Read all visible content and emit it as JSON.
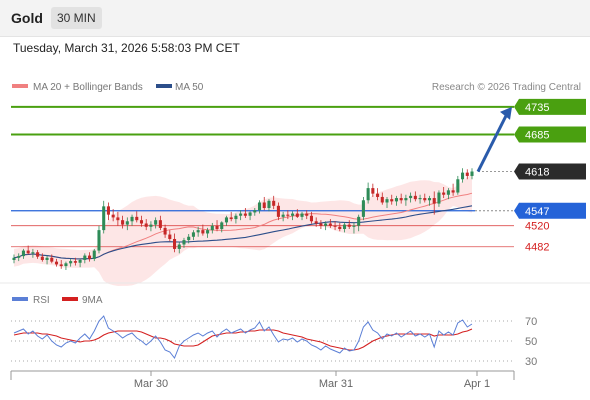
{
  "header": {
    "symbol": "Gold",
    "timeframe": "30 MIN"
  },
  "datetime": "Tuesday, March 31, 2026 5:58:03 PM CET",
  "chart_data": [
    {
      "type": "candlestick",
      "legend": [
        {
          "name": "MA 20 + Bollinger Bands",
          "color": "#f08080"
        },
        {
          "name": "MA 50",
          "color": "#2c4e8a"
        }
      ],
      "copyright": "Research © 2026 Trading Central",
      "ylim": [
        4420,
        4760
      ],
      "levels": [
        {
          "label": "4735",
          "value": 4735,
          "role": "resistance",
          "color": "#4aa010"
        },
        {
          "label": "4685",
          "value": 4685,
          "role": "resistance",
          "color": "#4aa010"
        },
        {
          "label": "4618",
          "value": 4618,
          "role": "last",
          "color": "#2b2b2b"
        },
        {
          "label": "4547",
          "value": 4547,
          "role": "pivot",
          "color": "#2563d8"
        },
        {
          "label": "4520",
          "value": 4520,
          "role": "support",
          "color": "#d42020"
        },
        {
          "label": "4482",
          "value": 4482,
          "role": "support",
          "color": "#d42020"
        }
      ],
      "x_ticks": [
        "Mar 30",
        "Mar 31",
        "Apr 1"
      ],
      "arrow": {
        "from": 4618,
        "to": 4735
      },
      "candles": [
        [
          4458,
          4468,
          4452,
          4462
        ],
        [
          4462,
          4470,
          4456,
          4465
        ],
        [
          4465,
          4478,
          4460,
          4475
        ],
        [
          4475,
          4484,
          4468,
          4470
        ],
        [
          4470,
          4478,
          4462,
          4472
        ],
        [
          4472,
          4476,
          4460,
          4464
        ],
        [
          4464,
          4470,
          4455,
          4458
        ],
        [
          4458,
          4466,
          4450,
          4462
        ],
        [
          4462,
          4468,
          4452,
          4455
        ],
        [
          4455,
          4460,
          4446,
          4450
        ],
        [
          4450,
          4458,
          4442,
          4447
        ],
        [
          4447,
          4455,
          4440,
          4452
        ],
        [
          4452,
          4460,
          4446,
          4456
        ],
        [
          4456,
          4462,
          4448,
          4453
        ],
        [
          4453,
          4460,
          4445,
          4458
        ],
        [
          4458,
          4470,
          4452,
          4466
        ],
        [
          4466,
          4472,
          4455,
          4460
        ],
        [
          4460,
          4478,
          4456,
          4475
        ],
        [
          4475,
          4520,
          4470,
          4512
        ],
        [
          4512,
          4565,
          4506,
          4555
        ],
        [
          4555,
          4562,
          4530,
          4540
        ],
        [
          4540,
          4550,
          4528,
          4535
        ],
        [
          4535,
          4545,
          4520,
          4530
        ],
        [
          4530,
          4538,
          4515,
          4522
        ],
        [
          4522,
          4535,
          4512,
          4528
        ],
        [
          4528,
          4540,
          4520,
          4536
        ],
        [
          4536,
          4546,
          4526,
          4530
        ],
        [
          4530,
          4538,
          4518,
          4524
        ],
        [
          4524,
          4532,
          4512,
          4518
        ],
        [
          4518,
          4528,
          4510,
          4522
        ],
        [
          4522,
          4535,
          4515,
          4530
        ],
        [
          4530,
          4538,
          4512,
          4516
        ],
        [
          4516,
          4522,
          4498,
          4504
        ],
        [
          4504,
          4512,
          4492,
          4496
        ],
        [
          4496,
          4506,
          4472,
          4478
        ],
        [
          4478,
          4490,
          4470,
          4486
        ],
        [
          4486,
          4498,
          4480,
          4494
        ],
        [
          4494,
          4505,
          4488,
          4500
        ],
        [
          4500,
          4512,
          4494,
          4508
        ],
        [
          4508,
          4518,
          4500,
          4512
        ],
        [
          4512,
          4522,
          4502,
          4506
        ],
        [
          4506,
          4516,
          4498,
          4512
        ],
        [
          4512,
          4525,
          4506,
          4520
        ],
        [
          4520,
          4530,
          4510,
          4514
        ],
        [
          4514,
          4528,
          4508,
          4526
        ],
        [
          4526,
          4538,
          4520,
          4535
        ],
        [
          4535,
          4545,
          4528,
          4532
        ],
        [
          4532,
          4542,
          4524,
          4538
        ],
        [
          4538,
          4548,
          4530,
          4542
        ],
        [
          4542,
          4552,
          4534,
          4538
        ],
        [
          4538,
          4546,
          4530,
          4544
        ],
        [
          4544,
          4552,
          4538,
          4548
        ],
        [
          4548,
          4566,
          4542,
          4562
        ],
        [
          4562,
          4572,
          4548,
          4552
        ],
        [
          4552,
          4568,
          4546,
          4565
        ],
        [
          4565,
          4574,
          4550,
          4556
        ],
        [
          4556,
          4562,
          4530,
          4536
        ],
        [
          4536,
          4545,
          4528,
          4540
        ],
        [
          4540,
          4548,
          4532,
          4538
        ],
        [
          4538,
          4546,
          4530,
          4542
        ],
        [
          4542,
          4550,
          4534,
          4536
        ],
        [
          4536,
          4545,
          4530,
          4542
        ],
        [
          4542,
          4548,
          4532,
          4538
        ],
        [
          4538,
          4545,
          4524,
          4528
        ],
        [
          4528,
          4535,
          4518,
          4524
        ],
        [
          4524,
          4530,
          4514,
          4520
        ],
        [
          4520,
          4528,
          4512,
          4524
        ],
        [
          4524,
          4532,
          4516,
          4520
        ],
        [
          4520,
          4528,
          4512,
          4518
        ],
        [
          4518,
          4525,
          4510,
          4514
        ],
        [
          4514,
          4526,
          4508,
          4522
        ],
        [
          4522,
          4530,
          4514,
          4518
        ],
        [
          4518,
          4526,
          4506,
          4520
        ],
        [
          4520,
          4540,
          4510,
          4536
        ],
        [
          4536,
          4572,
          4530,
          4566
        ],
        [
          4566,
          4598,
          4560,
          4588
        ],
        [
          4588,
          4596,
          4572,
          4578
        ],
        [
          4578,
          4588,
          4566,
          4572
        ],
        [
          4572,
          4580,
          4558,
          4562
        ],
        [
          4562,
          4572,
          4552,
          4568
        ],
        [
          4568,
          4576,
          4558,
          4564
        ],
        [
          4564,
          4574,
          4556,
          4570
        ],
        [
          4570,
          4578,
          4560,
          4566
        ],
        [
          4566,
          4576,
          4556,
          4570
        ],
        [
          4570,
          4580,
          4562,
          4574
        ],
        [
          4574,
          4582,
          4564,
          4568
        ],
        [
          4568,
          4576,
          4560,
          4570
        ],
        [
          4570,
          4578,
          4562,
          4566
        ],
        [
          4566,
          4574,
          4556,
          4570
        ],
        [
          4570,
          4582,
          4540,
          4560
        ],
        [
          4560,
          4584,
          4554,
          4580
        ],
        [
          4580,
          4590,
          4570,
          4576
        ],
        [
          4576,
          4588,
          4568,
          4584
        ],
        [
          4584,
          4596,
          4574,
          4580
        ],
        [
          4580,
          4610,
          4576,
          4604
        ],
        [
          4604,
          4624,
          4598,
          4616
        ],
        [
          4616,
          4622,
          4604,
          4610
        ],
        [
          4610,
          4624,
          4604,
          4618
        ]
      ]
    },
    {
      "type": "line",
      "legend": [
        {
          "name": "RSI",
          "color": "#5b7fd6"
        },
        {
          "name": "9MA",
          "color": "#d42020"
        }
      ],
      "y_ticks": [
        {
          "label": "70",
          "value": 70
        },
        {
          "label": "50",
          "value": 50
        },
        {
          "label": "30",
          "value": 30
        }
      ],
      "ylim": [
        20,
        80
      ],
      "rsi": [
        58,
        60,
        62,
        57,
        60,
        55,
        52,
        56,
        50,
        46,
        44,
        48,
        50,
        48,
        53,
        57,
        52,
        60,
        70,
        75,
        63,
        60,
        57,
        53,
        56,
        58,
        53,
        50,
        46,
        50,
        55,
        49,
        41,
        39,
        33,
        45,
        50,
        53,
        56,
        58,
        55,
        58,
        60,
        54,
        59,
        62,
        58,
        60,
        62,
        58,
        61,
        63,
        69,
        60,
        64,
        56,
        49,
        52,
        51,
        53,
        49,
        52,
        50,
        46,
        44,
        41,
        45,
        42,
        40,
        38,
        43,
        40,
        41,
        50,
        64,
        69,
        61,
        58,
        52,
        57,
        55,
        58,
        54,
        57,
        60,
        55,
        57,
        54,
        57,
        44,
        60,
        56,
        59,
        56,
        68,
        71,
        64,
        67
      ],
      "ma9": [
        56,
        57,
        58,
        58,
        58,
        58,
        57,
        57,
        56,
        55,
        53,
        52,
        51,
        50,
        49,
        50,
        50,
        51,
        53,
        56,
        58,
        59,
        60,
        60,
        60,
        60,
        60,
        59,
        57,
        55,
        53,
        53,
        52,
        50,
        47,
        46,
        45,
        45,
        45,
        46,
        49,
        52,
        55,
        56,
        57,
        58,
        58,
        58,
        59,
        59,
        60,
        60,
        61,
        61,
        61,
        61,
        60,
        58,
        57,
        56,
        55,
        54,
        52,
        51,
        50,
        49,
        47,
        45,
        44,
        43,
        42,
        41,
        41,
        42,
        44,
        47,
        50,
        52,
        54,
        55,
        56,
        57,
        57,
        57,
        57,
        57,
        57,
        57,
        57,
        55,
        56,
        56,
        56,
        56,
        57,
        59,
        60,
        62
      ]
    }
  ]
}
